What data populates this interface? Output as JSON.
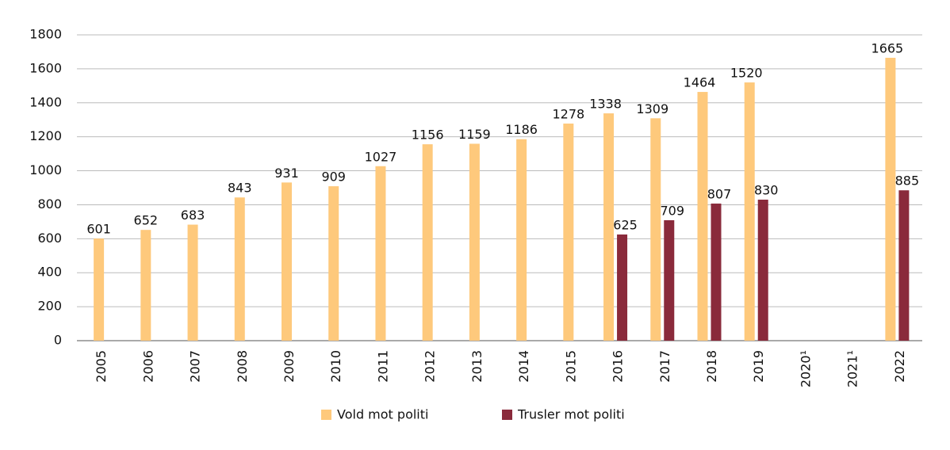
{
  "chart_data": {
    "type": "bar",
    "categories": [
      "2005",
      "2006",
      "2007",
      "2008",
      "2009",
      "2010",
      "2011",
      "2012",
      "2013",
      "2014",
      "2015",
      "2016",
      "2017",
      "2018",
      "2019",
      "2020¹",
      "2021¹",
      "2022"
    ],
    "series": [
      {
        "name": "Vold mot politi",
        "color": "#fec97c",
        "values": [
          601,
          652,
          683,
          843,
          931,
          909,
          1027,
          1156,
          1159,
          1186,
          1278,
          1338,
          1309,
          1464,
          1520,
          null,
          null,
          1665
        ]
      },
      {
        "name": "Trusler mot politi",
        "color": "#8a2a3b",
        "values": [
          null,
          null,
          null,
          null,
          null,
          null,
          null,
          null,
          null,
          null,
          null,
          625,
          709,
          807,
          830,
          null,
          null,
          885
        ]
      }
    ],
    "ylim": [
      0,
      1800
    ],
    "yticks": [
      0,
      200,
      400,
      600,
      800,
      1000,
      1200,
      1400,
      1600,
      1800
    ],
    "grid": true
  }
}
